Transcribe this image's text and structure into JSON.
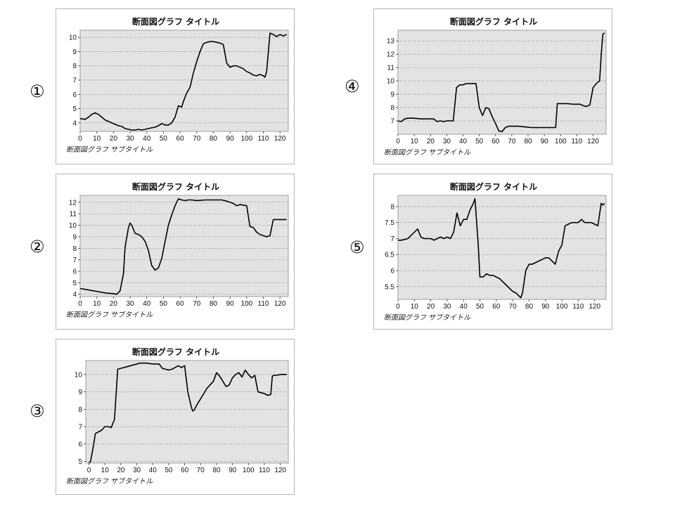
{
  "chart_data": [
    {
      "id": "1",
      "marker": "①",
      "type": "line",
      "title": "断面図グラフ タイトル",
      "subtitle": "断面図グラフ サブタイトル",
      "xlim": [
        0,
        125
      ],
      "ylim": [
        3.4,
        10.5
      ],
      "xticks": [
        0,
        10,
        20,
        30,
        40,
        50,
        60,
        70,
        80,
        90,
        100,
        110,
        120
      ],
      "yticks": [
        4,
        5,
        6,
        7,
        8,
        9,
        10
      ],
      "grid": true,
      "series": [
        {
          "x": [
            0,
            3,
            5,
            7,
            9,
            11,
            13,
            15,
            17,
            19,
            21,
            23,
            25,
            27,
            29,
            31,
            33,
            35,
            37,
            39,
            41,
            43,
            45,
            47,
            49,
            51,
            53,
            55,
            57,
            59,
            61,
            62,
            64,
            66,
            68,
            70,
            72,
            74,
            76,
            78,
            80,
            82,
            84,
            86,
            88,
            90,
            92,
            94,
            96,
            98,
            100,
            102,
            104,
            106,
            108,
            110,
            111,
            112,
            114,
            116,
            118,
            120,
            122,
            124
          ],
          "y": [
            4.3,
            4.25,
            4.4,
            4.6,
            4.7,
            4.6,
            4.4,
            4.2,
            4.1,
            4.0,
            3.9,
            3.8,
            3.75,
            3.6,
            3.55,
            3.5,
            3.5,
            3.55,
            3.5,
            3.55,
            3.6,
            3.65,
            3.7,
            3.8,
            3.95,
            3.85,
            3.85,
            4.0,
            4.4,
            5.2,
            5.1,
            5.5,
            6.1,
            6.5,
            7.5,
            8.3,
            9.0,
            9.55,
            9.65,
            9.7,
            9.7,
            9.65,
            9.6,
            9.5,
            8.2,
            7.9,
            8.0,
            8.0,
            7.9,
            7.8,
            7.6,
            7.5,
            7.35,
            7.3,
            7.4,
            7.3,
            7.2,
            7.6,
            10.3,
            10.2,
            10.05,
            10.2,
            10.1,
            10.2
          ]
        }
      ]
    },
    {
      "id": "2",
      "marker": "②",
      "type": "line",
      "title": "断面図グラフ タイトル",
      "subtitle": "断面図グラフ サブタイトル",
      "xlim": [
        0,
        125
      ],
      "ylim": [
        3.8,
        12.6
      ],
      "xticks": [
        0,
        10,
        20,
        30,
        40,
        50,
        60,
        70,
        80,
        90,
        100,
        110,
        120
      ],
      "yticks": [
        4,
        5,
        6,
        7,
        8,
        9,
        10,
        11,
        12
      ],
      "grid": true,
      "series": [
        {
          "x": [
            0,
            4,
            8,
            12,
            16,
            20,
            22,
            24,
            26,
            27,
            29,
            30,
            31,
            33,
            35,
            37,
            39,
            41,
            43,
            45,
            47,
            49,
            51,
            53,
            55,
            57,
            59,
            61,
            63,
            65,
            67,
            70,
            75,
            80,
            85,
            88,
            90,
            92,
            94,
            96,
            98,
            100,
            102,
            104,
            106,
            108,
            110,
            112,
            114,
            116,
            118,
            120,
            122,
            124
          ],
          "y": [
            4.5,
            4.4,
            4.3,
            4.2,
            4.1,
            4.05,
            4.0,
            4.3,
            5.8,
            8.1,
            9.8,
            10.2,
            10.0,
            9.3,
            9.2,
            9.0,
            8.6,
            7.8,
            6.5,
            6.1,
            6.3,
            7.1,
            8.6,
            10.0,
            10.9,
            11.7,
            12.3,
            12.2,
            12.15,
            12.2,
            12.2,
            12.15,
            12.2,
            12.2,
            12.2,
            12.1,
            12.0,
            11.9,
            11.7,
            11.8,
            11.75,
            11.7,
            9.9,
            9.8,
            9.4,
            9.2,
            9.1,
            9.0,
            9.1,
            10.5,
            10.5,
            10.5,
            10.5,
            10.5
          ]
        }
      ]
    },
    {
      "id": "3",
      "marker": "③",
      "type": "line",
      "title": "断面図グラフ タイトル",
      "subtitle": "断面図グラフ サブタイトル",
      "xlim": [
        -2,
        125
      ],
      "ylim": [
        4.9,
        10.8
      ],
      "xticks": [
        0,
        10,
        20,
        30,
        40,
        50,
        60,
        70,
        80,
        90,
        100,
        110,
        120
      ],
      "yticks": [
        5,
        6,
        7,
        8,
        9,
        10
      ],
      "grid": true,
      "series": [
        {
          "x": [
            0,
            1,
            2,
            3,
            4,
            6,
            8,
            10,
            12,
            14,
            15,
            16,
            18,
            20,
            24,
            28,
            32,
            36,
            40,
            44,
            46,
            48,
            50,
            52,
            54,
            56,
            58,
            60,
            62,
            64,
            65,
            66,
            68,
            70,
            72,
            74,
            76,
            78,
            80,
            82,
            84,
            86,
            88,
            90,
            92,
            94,
            96,
            98,
            100,
            102,
            104,
            106,
            108,
            110,
            112,
            114,
            115,
            116,
            118,
            120,
            122,
            124
          ],
          "y": [
            4.9,
            5.0,
            5.5,
            6.0,
            6.6,
            6.7,
            6.8,
            7.0,
            7.0,
            6.95,
            7.2,
            7.4,
            10.3,
            10.35,
            10.45,
            10.55,
            10.65,
            10.65,
            10.6,
            10.6,
            10.35,
            10.3,
            10.25,
            10.3,
            10.4,
            10.5,
            10.4,
            10.5,
            9.0,
            8.2,
            7.9,
            7.95,
            8.3,
            8.6,
            8.9,
            9.2,
            9.4,
            9.6,
            10.1,
            9.9,
            9.6,
            9.3,
            9.4,
            9.8,
            10.0,
            10.1,
            9.85,
            10.25,
            10.0,
            9.8,
            9.95,
            9.0,
            8.95,
            8.9,
            8.8,
            8.85,
            9.9,
            9.95,
            9.95,
            10.0,
            10.0,
            10.0
          ]
        }
      ]
    },
    {
      "id": "4",
      "marker": "④",
      "type": "line",
      "title": "断面図グラフ タイトル",
      "subtitle": "断面図グラフ サブタイトル",
      "xlim": [
        0,
        128
      ],
      "ylim": [
        6.0,
        13.8
      ],
      "xticks": [
        0,
        10,
        20,
        30,
        40,
        50,
        60,
        70,
        80,
        90,
        100,
        110,
        120
      ],
      "yticks": [
        7,
        8,
        9,
        10,
        11,
        12,
        13
      ],
      "grid": true,
      "series": [
        {
          "x": [
            0,
            2,
            4,
            6,
            8,
            10,
            14,
            18,
            22,
            24,
            26,
            28,
            30,
            32,
            34,
            36,
            38,
            40,
            42,
            44,
            46,
            48,
            50,
            52,
            54,
            56,
            58,
            60,
            62,
            64,
            66,
            68,
            70,
            74,
            78,
            82,
            86,
            90,
            94,
            96,
            97,
            98,
            100,
            104,
            108,
            112,
            115,
            116,
            118,
            120,
            122,
            124,
            125,
            126,
            127
          ],
          "y": [
            7.0,
            6.95,
            7.15,
            7.2,
            7.2,
            7.2,
            7.15,
            7.15,
            7.15,
            6.95,
            7.0,
            6.95,
            7.0,
            7.0,
            7.0,
            9.5,
            9.7,
            9.7,
            9.8,
            9.8,
            9.8,
            9.8,
            8.0,
            7.4,
            8.0,
            7.9,
            7.3,
            6.8,
            6.25,
            6.2,
            6.5,
            6.6,
            6.6,
            6.6,
            6.55,
            6.5,
            6.5,
            6.5,
            6.5,
            6.5,
            6.5,
            8.3,
            8.3,
            8.3,
            8.25,
            8.25,
            8.1,
            8.1,
            8.2,
            9.5,
            9.8,
            10.0,
            12.0,
            13.5,
            13.6
          ]
        }
      ]
    },
    {
      "id": "5",
      "marker": "⑤",
      "type": "line",
      "title": "断面図グラフ タイトル",
      "subtitle": "断面図グラフ サブタイトル",
      "xlim": [
        0,
        127
      ],
      "ylim": [
        5.1,
        8.35
      ],
      "xticks": [
        0,
        10,
        20,
        30,
        40,
        50,
        60,
        70,
        80,
        90,
        100,
        110,
        120
      ],
      "yticks": [
        5.5,
        6,
        6.5,
        7,
        7.5,
        8
      ],
      "grid": true,
      "series": [
        {
          "x": [
            0,
            2,
            4,
            6,
            8,
            10,
            12,
            14,
            16,
            18,
            20,
            22,
            24,
            26,
            28,
            30,
            32,
            34,
            36,
            38,
            40,
            42,
            44,
            46,
            47,
            48,
            49,
            50,
            52,
            54,
            56,
            58,
            60,
            62,
            64,
            66,
            68,
            70,
            72,
            74,
            75,
            76,
            78,
            80,
            82,
            84,
            86,
            88,
            90,
            92,
            94,
            96,
            98,
            100,
            102,
            104,
            106,
            108,
            110,
            112,
            114,
            116,
            118,
            120,
            122,
            124,
            125,
            126
          ],
          "y": [
            6.95,
            6.95,
            6.97,
            7.0,
            7.1,
            7.2,
            7.3,
            7.05,
            7.0,
            7.0,
            7.0,
            6.95,
            7.0,
            7.05,
            7.0,
            7.05,
            7.0,
            7.2,
            7.8,
            7.4,
            7.6,
            7.6,
            7.9,
            8.1,
            8.25,
            7.5,
            6.8,
            5.8,
            5.8,
            5.9,
            5.85,
            5.85,
            5.8,
            5.75,
            5.65,
            5.55,
            5.45,
            5.35,
            5.3,
            5.2,
            5.15,
            5.3,
            6.0,
            6.2,
            6.2,
            6.25,
            6.3,
            6.35,
            6.4,
            6.4,
            6.3,
            6.2,
            6.6,
            6.8,
            7.4,
            7.45,
            7.5,
            7.5,
            7.5,
            7.6,
            7.5,
            7.5,
            7.5,
            7.45,
            7.4,
            8.1,
            8.05,
            8.1
          ]
        }
      ]
    }
  ]
}
